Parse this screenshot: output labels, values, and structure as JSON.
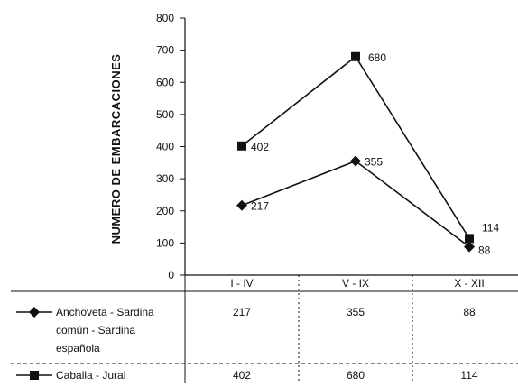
{
  "chart_data": {
    "type": "line",
    "categories": [
      "I - IV",
      "V - IX",
      "X - XII"
    ],
    "ylabel": "NUMERO DE EMBARCACIONES",
    "ylim": [
      0,
      800
    ],
    "yticks": [
      0,
      100,
      200,
      300,
      400,
      500,
      600,
      700,
      800
    ],
    "grid": false,
    "legend": "table-below",
    "series": [
      {
        "name_lines": [
          "Anchoveta - Sardina",
          "común - Sardina",
          "española"
        ],
        "marker": "diamond",
        "values": [
          217,
          355,
          88
        ],
        "value_labels": [
          "217",
          "355",
          "88"
        ],
        "color": "#111111"
      },
      {
        "name_lines": [
          "Caballa - Jural"
        ],
        "marker": "square",
        "values": [
          402,
          680,
          114
        ],
        "value_labels": [
          "402",
          "680",
          "114"
        ],
        "color": "#111111"
      }
    ]
  }
}
